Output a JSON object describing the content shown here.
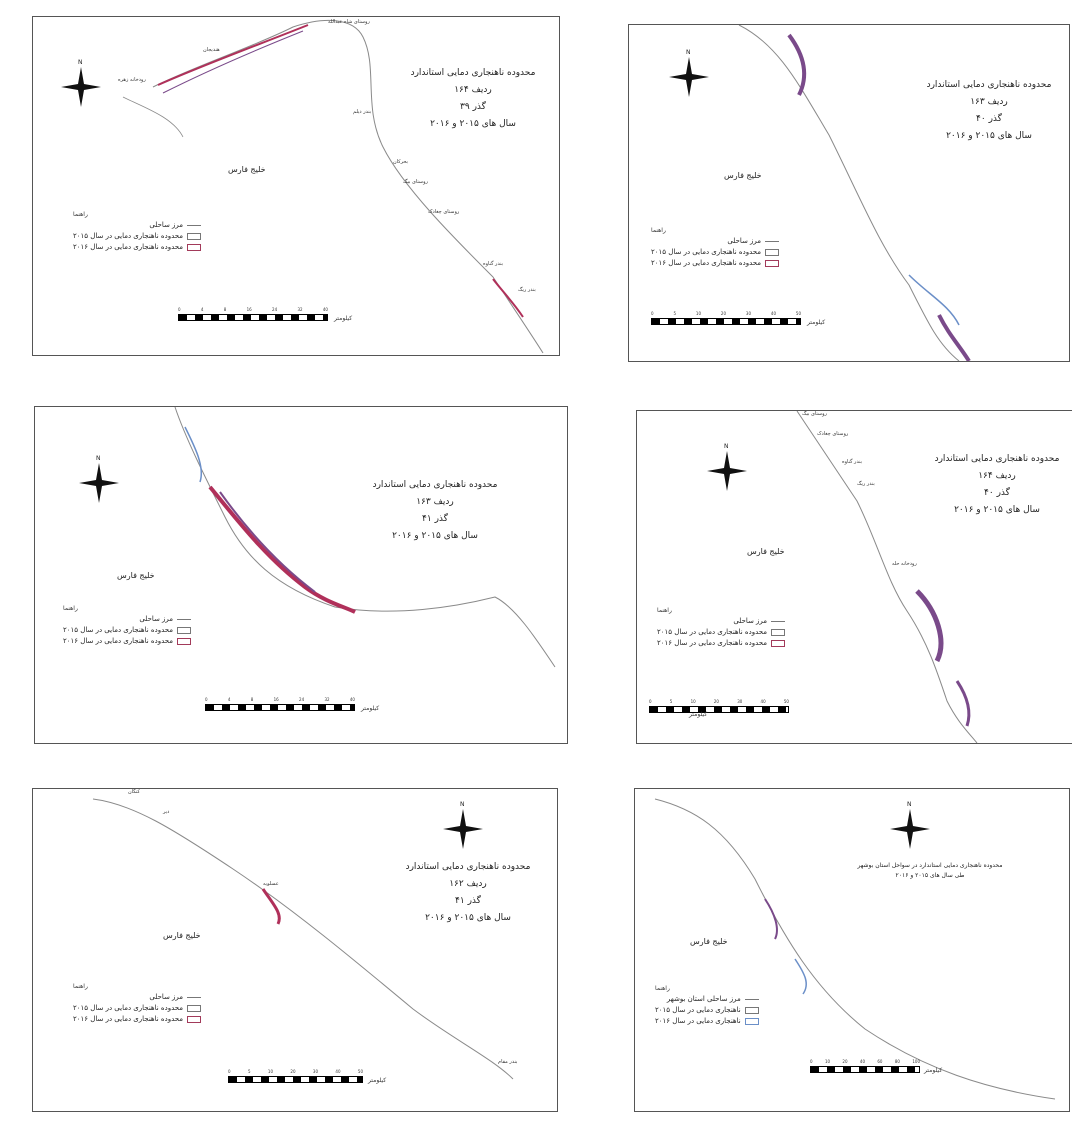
{
  "legend_heading": "راهنما",
  "gulf_label": "خلیج فارس",
  "scale_unit": "کیلومتر",
  "north_letter": "N",
  "colors": {
    "coast": "#8a8a8a",
    "anomaly_2015": "#7a4a8a",
    "anomaly_2016": "#b0305a",
    "outline_blue": "#6b8fc8"
  },
  "panels": [
    {
      "title": [
        "محدوده ناهنجاری دمایی استاندارد",
        "ردیف ۱۶۴",
        "گذر ۳۹",
        "سال های ۲۰۱۵ و ۲۰۱۶"
      ],
      "legend": [
        "مرز ساحلی",
        "محدوده ناهنجاری دمایی در سال ۲۰۱۵",
        "محدوده ناهنجاری دمایی در سال ۲۰۱۶"
      ],
      "scale_numbers": [
        "0",
        "4",
        "8",
        "16",
        "24",
        "32",
        "40"
      ],
      "places": [
        "رودخانه زهره",
        "هندیجان",
        "روستای شاه عبدالله",
        "بندر دیلم",
        "بحرکان",
        "روستای بیگ",
        "روستای چغادک",
        "بندر گناوه",
        "بندر ریگ"
      ]
    },
    {
      "title": [
        "محدوده ناهنجاری دمایی استاندارد",
        "ردیف ۱۶۳",
        "گذر ۴۰",
        "سال های ۲۰۱۵ و ۲۰۱۶"
      ],
      "legend": [
        "مرز ساحلی",
        "محدوده ناهنجاری دمایی در سال ۲۰۱۵",
        "محدوده ناهنجاری دمایی در سال ۲۰۱۶"
      ],
      "scale_numbers": [
        "0",
        "5",
        "10",
        "20",
        "30",
        "40",
        "50"
      ],
      "places": []
    },
    {
      "title": [
        "محدوده ناهنجاری دمایی استاندارد",
        "ردیف ۱۶۳",
        "گذر ۴۱",
        "سال های ۲۰۱۵ و ۲۰۱۶"
      ],
      "legend": [
        "مرز ساحلی",
        "محدوده ناهنجاری دمایی در سال ۲۰۱۵",
        "محدوده ناهنجاری دمایی در سال ۲۰۱۶"
      ],
      "scale_numbers": [
        "0",
        "4",
        "8",
        "16",
        "24",
        "32",
        "40"
      ],
      "places": []
    },
    {
      "title": [
        "محدوده ناهنجاری دمایی استاندارد",
        "ردیف ۱۶۴",
        "گذر ۴۰",
        "سال های ۲۰۱۵ و ۲۰۱۶"
      ],
      "legend": [
        "مرز ساحلی",
        "محدوده ناهنجاری دمایی در سال ۲۰۱۵",
        "محدوده ناهنجاری دمایی در سال ۲۰۱۶"
      ],
      "scale_numbers": [
        "0",
        "5",
        "10",
        "20",
        "30",
        "40",
        "50"
      ],
      "places": [
        "روستای بیگ",
        "روستای چغادک",
        "بندر گناوه",
        "بندر ریگ",
        "رودخانه حله"
      ]
    },
    {
      "title": [
        "محدوده ناهنجاری دمایی استاندارد",
        "ردیف ۱۶۲",
        "گذر ۴۱",
        "سال های ۲۰۱۵ و ۲۰۱۶"
      ],
      "legend": [
        "مرز ساحلی",
        "محدوده ناهنجاری دمایی در سال ۲۰۱۵",
        "محدوده ناهنجاری دمایی در سال ۲۰۱۶"
      ],
      "scale_numbers": [
        "0",
        "5",
        "10",
        "20",
        "30",
        "40",
        "50"
      ],
      "places": [
        "کنگان",
        "دیر",
        "عسلویه",
        "بندر مقام"
      ]
    },
    {
      "title": [
        "محدوده ناهنجاری دمایی استاندارد در سواحل استان بوشهر",
        "طی سال های ۲۰۱۵ و ۲۰۱۶"
      ],
      "legend": [
        "مرز ساحلی استان بوشهر",
        "ناهنجاری دمایی در سال ۲۰۱۵",
        "ناهنجاری دمایی در سال ۲۰۱۶"
      ],
      "scale_numbers": [
        "0",
        "10",
        "20",
        "40",
        "60",
        "80",
        "100"
      ],
      "places": []
    }
  ]
}
